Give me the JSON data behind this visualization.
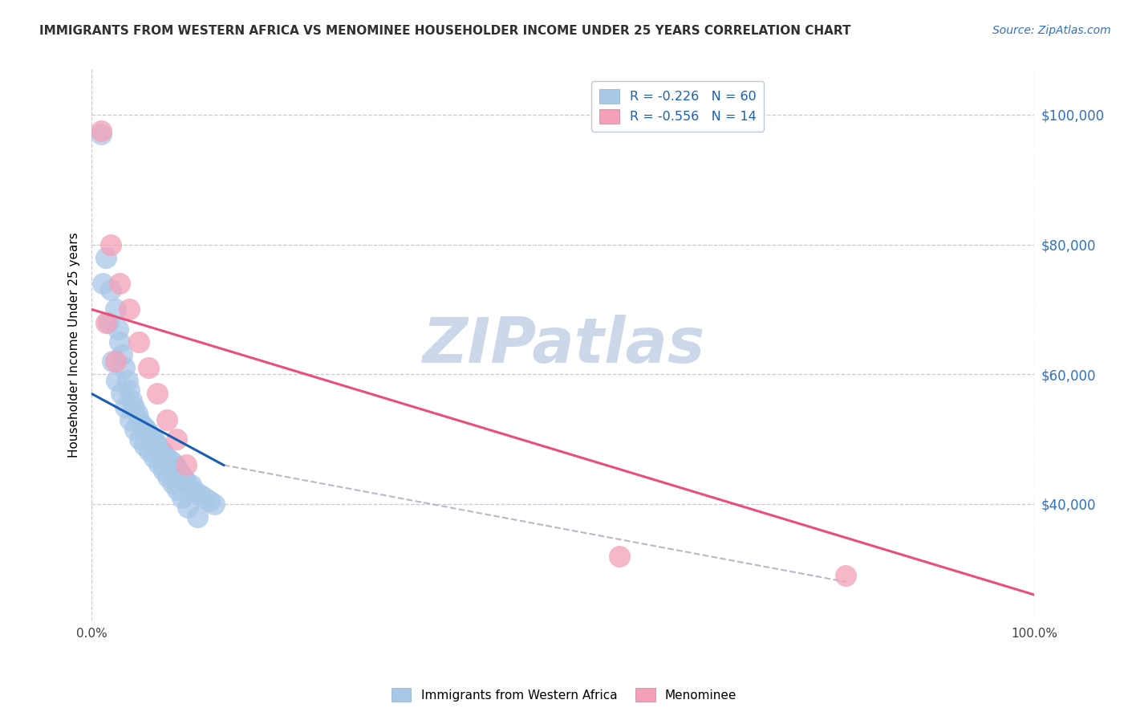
{
  "title": "IMMIGRANTS FROM WESTERN AFRICA VS MENOMINEE HOUSEHOLDER INCOME UNDER 25 YEARS CORRELATION CHART",
  "source": "Source: ZipAtlas.com",
  "ylabel": "Householder Income Under 25 years",
  "legend_blue_label": "Immigrants from Western Africa",
  "legend_pink_label": "Menominee",
  "r_blue": -0.226,
  "n_blue": 60,
  "r_pink": -0.556,
  "n_pink": 14,
  "blue_color": "#a8c8e8",
  "pink_color": "#f4a0b8",
  "blue_line_color": "#1a5fb4",
  "pink_line_color": "#e8507a",
  "dashed_line_color": "#b8b8c8",
  "background_color": "#ffffff",
  "grid_color": "#c8c8d8",
  "title_color": "#303030",
  "source_color": "#3070c0",
  "watermark_color": "#ccd8ea",
  "ytick_color": "#3070c0",
  "xtick_color": "#404040",
  "blue_scatter_x": [
    1.0,
    1.5,
    2.0,
    2.5,
    2.8,
    3.0,
    3.2,
    3.5,
    3.8,
    4.0,
    4.2,
    4.5,
    4.8,
    5.0,
    5.2,
    5.5,
    5.8,
    6.0,
    6.2,
    6.5,
    6.8,
    7.0,
    7.2,
    7.5,
    7.8,
    8.0,
    8.2,
    8.5,
    8.8,
    9.0,
    9.2,
    9.5,
    9.8,
    10.0,
    10.5,
    11.0,
    11.5,
    12.0,
    12.5,
    13.0,
    1.2,
    1.8,
    2.2,
    2.6,
    3.1,
    3.6,
    4.1,
    4.6,
    5.1,
    5.6,
    6.1,
    6.6,
    7.1,
    7.6,
    8.1,
    8.6,
    9.1,
    9.6,
    10.2,
    11.2
  ],
  "blue_scatter_y": [
    97000,
    78000,
    73000,
    70000,
    67000,
    65000,
    63000,
    61000,
    59000,
    57500,
    56000,
    55000,
    54000,
    53000,
    52500,
    52000,
    51500,
    51000,
    50500,
    50000,
    49500,
    49000,
    48500,
    48000,
    47500,
    47000,
    46800,
    46500,
    46000,
    45500,
    45000,
    44500,
    44000,
    43500,
    43000,
    42000,
    41500,
    41000,
    40500,
    40000,
    74000,
    68000,
    62000,
    59000,
    57000,
    55000,
    53000,
    51500,
    50000,
    49000,
    48200,
    47200,
    46200,
    45200,
    44200,
    43200,
    42200,
    41000,
    39500,
    38000
  ],
  "pink_scatter_x": [
    1.0,
    2.0,
    3.0,
    4.0,
    5.0,
    6.0,
    7.0,
    8.0,
    9.0,
    10.0,
    56.0,
    80.0,
    1.5,
    2.5
  ],
  "pink_scatter_y": [
    97500,
    80000,
    74000,
    70000,
    65000,
    61000,
    57000,
    53000,
    50000,
    46000,
    32000,
    29000,
    68000,
    62000
  ],
  "blue_trendline_x": [
    0.0,
    14.0
  ],
  "blue_trendline_y": [
    57000,
    46000
  ],
  "pink_trendline_x": [
    0.0,
    100.0
  ],
  "pink_trendline_y": [
    70000,
    26000
  ],
  "dashed_trendline_x": [
    14.0,
    80.0
  ],
  "dashed_trendline_y": [
    46000,
    28000
  ],
  "xlim": [
    0.0,
    100.0
  ],
  "ylim": [
    22000,
    107000
  ],
  "yticks": [
    40000,
    60000,
    80000,
    100000
  ],
  "ytick_labels": [
    "$40,000",
    "$60,000",
    "$80,000",
    "$100,000"
  ],
  "xtick_positions": [
    0,
    100
  ],
  "xtick_labels": [
    "0.0%",
    "100.0%"
  ]
}
